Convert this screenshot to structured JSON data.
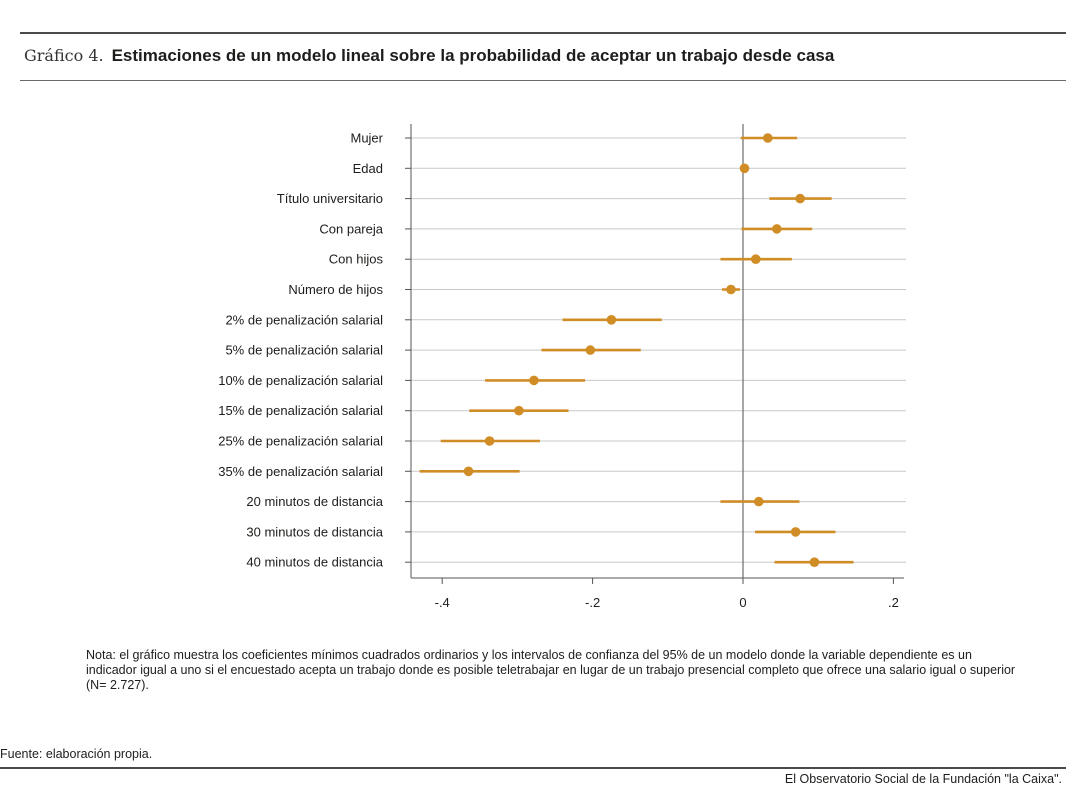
{
  "header": {
    "prefix": "Gráfico 4.",
    "title": "Estimaciones de un modelo lineal sobre la probabilidad de aceptar un trabajo desde casa"
  },
  "chart_data": {
    "type": "scatter",
    "subtype": "coefficient-plot-with-95-ci",
    "xlim": [
      -0.43,
      0.215
    ],
    "xticks": [
      -0.4,
      -0.2,
      0,
      0.2
    ],
    "xtick_labels": [
      "-.4",
      "-.2",
      "0",
      ".2"
    ],
    "reference_line_x": 0,
    "grid": "horizontal",
    "color": "#d08c25",
    "points": [
      {
        "label": "Mujer",
        "estimate": 0.033,
        "ci": [
          -0.003,
          0.072
        ]
      },
      {
        "label": "Edad",
        "estimate": 0.002,
        "ci": [
          0.0,
          0.004
        ]
      },
      {
        "label": "Título universitario",
        "estimate": 0.076,
        "ci": [
          0.035,
          0.118
        ]
      },
      {
        "label": "Con pareja",
        "estimate": 0.045,
        "ci": [
          -0.002,
          0.092
        ]
      },
      {
        "label": "Con hijos",
        "estimate": 0.017,
        "ci": [
          -0.03,
          0.065
        ]
      },
      {
        "label": "Número de hijos",
        "estimate": -0.016,
        "ci": [
          -0.028,
          -0.004
        ]
      },
      {
        "label": "2% de penalización salarial",
        "estimate": -0.175,
        "ci": [
          -0.24,
          -0.108
        ]
      },
      {
        "label": "5% de penalización salarial",
        "estimate": -0.203,
        "ci": [
          -0.268,
          -0.136
        ]
      },
      {
        "label": "10% de penalización salarial",
        "estimate": -0.278,
        "ci": [
          -0.343,
          -0.21
        ]
      },
      {
        "label": "15% de penalización salarial",
        "estimate": -0.298,
        "ci": [
          -0.364,
          -0.232
        ]
      },
      {
        "label": "25% de penalización salarial",
        "estimate": -0.337,
        "ci": [
          -0.402,
          -0.27
        ]
      },
      {
        "label": "35% de penalización salarial",
        "estimate": -0.365,
        "ci": [
          -0.43,
          -0.297
        ]
      },
      {
        "label": "20 minutos de distancia",
        "estimate": 0.021,
        "ci": [
          -0.03,
          0.075
        ]
      },
      {
        "label": "30 minutos de distancia",
        "estimate": 0.07,
        "ci": [
          0.016,
          0.123
        ]
      },
      {
        "label": "40 minutos de distancia",
        "estimate": 0.095,
        "ci": [
          0.042,
          0.147
        ]
      }
    ]
  },
  "note": "Nota: el gráfico muestra los coeficientes mínimos cuadrados ordinarios y los intervalos de confianza del 95% de un modelo donde la variable dependiente es un indicador igual a uno si el encuestado acepta un trabajo donde es posible teletrabajar en lugar de un trabajo presencial completo que ofrece una salario igual o superior (N= 2.727).",
  "source": "Fuente: elaboración propia.",
  "credit": "El Observatorio Social de la Fundación \"la Caixa\"."
}
